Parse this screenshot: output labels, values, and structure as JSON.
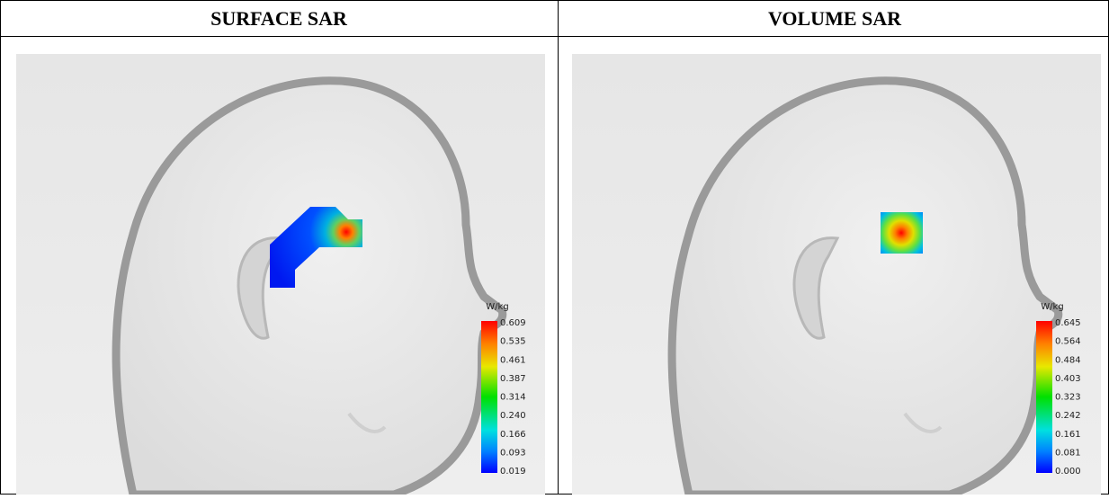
{
  "header": {
    "columns": [
      "SURFACE SAR",
      "VOLUME SAR"
    ]
  },
  "panels": [
    {
      "unit": "W/kg",
      "scale": [
        "0.609",
        "0.535",
        "0.461",
        "0.387",
        "0.314",
        "0.240",
        "0.166",
        "0.093",
        "0.019"
      ]
    },
    {
      "unit": "W/kg",
      "scale": [
        "0.645",
        "0.564",
        "0.484",
        "0.403",
        "0.323",
        "0.242",
        "0.161",
        "0.081",
        "0.000"
      ]
    }
  ]
}
